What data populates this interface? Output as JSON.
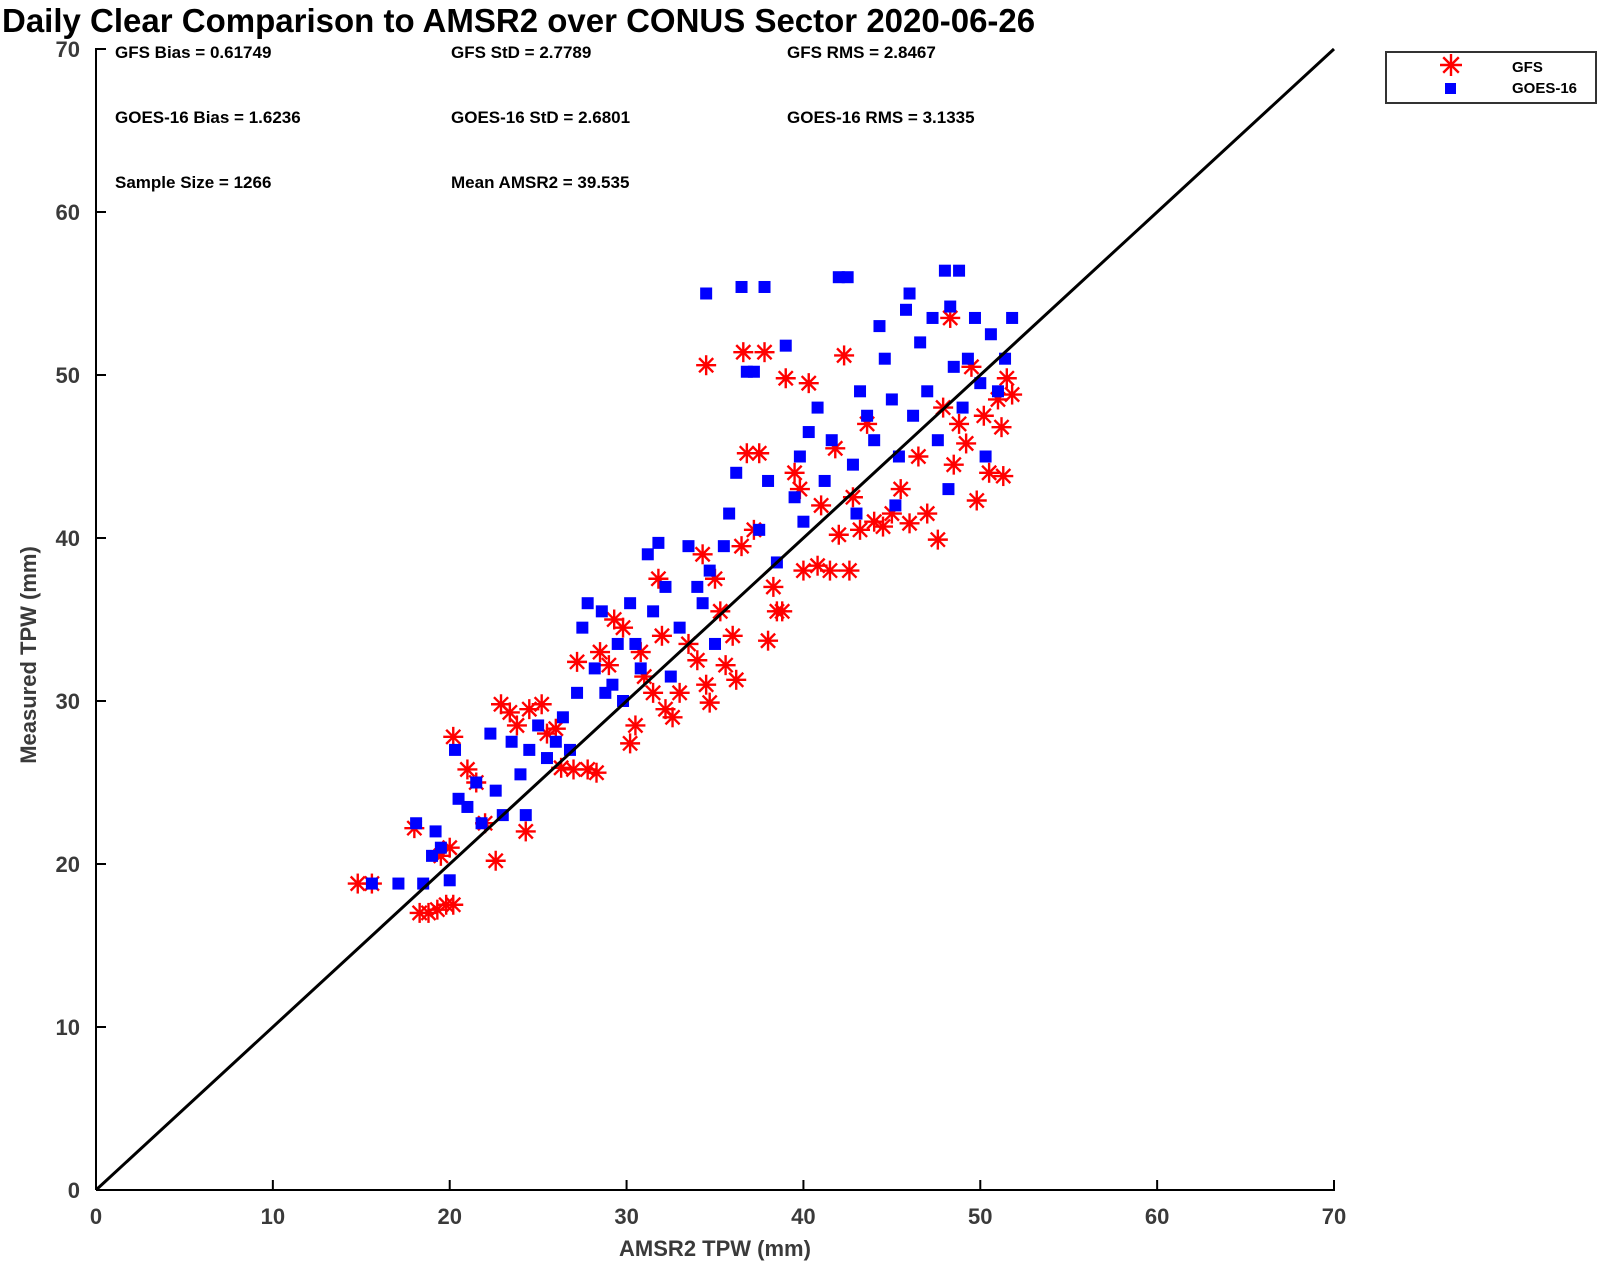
{
  "chart_data": {
    "type": "scatter",
    "title": "Daily Clear Comparison to AMSR2 over CONUS Sector 2020-06-26",
    "xlabel": "AMSR2 TPW (mm)",
    "ylabel": "Measured TPW (mm)",
    "xlim": [
      0,
      70
    ],
    "ylim": [
      0,
      70
    ],
    "xticks": [
      "0",
      "10",
      "20",
      "30",
      "40",
      "50",
      "60",
      "70"
    ],
    "yticks": [
      "0",
      "10",
      "20",
      "30",
      "40",
      "50",
      "60",
      "70"
    ],
    "reference_line": {
      "name": "1:1 line",
      "from": [
        0,
        0
      ],
      "to": [
        70,
        70
      ],
      "color": "#000000"
    },
    "legend": {
      "placement": "outside top-right",
      "entries": [
        "GFS",
        "GOES-16"
      ]
    },
    "stats": [
      {
        "id": "gfs-bias",
        "text": "GFS Bias = 0.61749"
      },
      {
        "id": "gfs-std",
        "text": "GFS StD = 2.7789"
      },
      {
        "id": "gfs-rms",
        "text": "GFS RMS = 2.8467"
      },
      {
        "id": "goes-bias",
        "text": "GOES-16 Bias = 1.6236"
      },
      {
        "id": "goes-std",
        "text": "GOES-16 StD = 2.6801"
      },
      {
        "id": "goes-rms",
        "text": "GOES-16 RMS = 3.1335"
      },
      {
        "id": "sample-size",
        "text": "Sample Size = 1266"
      },
      {
        "id": "mean-amsr2",
        "text": "Mean AMSR2 = 39.535"
      }
    ],
    "series": [
      {
        "name": "GFS",
        "marker": "asterisk",
        "color": "#ff0000",
        "points": [
          [
            14.8,
            18.8
          ],
          [
            15.6,
            18.8
          ],
          [
            18.0,
            22.2
          ],
          [
            18.3,
            17.0
          ],
          [
            18.8,
            17.0
          ],
          [
            19.3,
            17.2
          ],
          [
            19.8,
            17.5
          ],
          [
            20.2,
            17.5
          ],
          [
            19.5,
            20.5
          ],
          [
            20.0,
            21.0
          ],
          [
            20.2,
            27.8
          ],
          [
            21.0,
            25.8
          ],
          [
            21.5,
            25.0
          ],
          [
            22.0,
            22.5
          ],
          [
            22.6,
            20.2
          ],
          [
            22.9,
            29.8
          ],
          [
            23.4,
            29.3
          ],
          [
            23.8,
            28.5
          ],
          [
            24.3,
            22.0
          ],
          [
            24.5,
            29.5
          ],
          [
            25.2,
            29.8
          ],
          [
            25.5,
            28.0
          ],
          [
            26.0,
            28.3
          ],
          [
            26.3,
            25.9
          ],
          [
            27.0,
            25.8
          ],
          [
            27.2,
            32.4
          ],
          [
            27.8,
            25.8
          ],
          [
            28.3,
            25.6
          ],
          [
            28.5,
            33.0
          ],
          [
            29.0,
            32.2
          ],
          [
            29.3,
            35.0
          ],
          [
            29.8,
            34.5
          ],
          [
            30.2,
            27.4
          ],
          [
            30.5,
            28.5
          ],
          [
            30.8,
            33.0
          ],
          [
            31.0,
            31.5
          ],
          [
            31.5,
            30.5
          ],
          [
            31.8,
            37.5
          ],
          [
            32.0,
            34.0
          ],
          [
            32.2,
            29.5
          ],
          [
            32.6,
            29.0
          ],
          [
            33.0,
            30.5
          ],
          [
            33.5,
            33.5
          ],
          [
            34.0,
            32.5
          ],
          [
            34.5,
            31.0
          ],
          [
            34.5,
            50.6
          ],
          [
            34.3,
            39.0
          ],
          [
            34.7,
            29.9
          ],
          [
            35.0,
            37.5
          ],
          [
            35.3,
            35.5
          ],
          [
            35.6,
            32.2
          ],
          [
            36.0,
            34.0
          ],
          [
            36.2,
            31.3
          ],
          [
            36.5,
            39.5
          ],
          [
            36.8,
            45.2
          ],
          [
            36.6,
            51.4
          ],
          [
            37.2,
            40.5
          ],
          [
            37.5,
            45.2
          ],
          [
            37.8,
            51.4
          ],
          [
            38.0,
            33.7
          ],
          [
            38.3,
            37.0
          ],
          [
            38.5,
            35.5
          ],
          [
            38.8,
            35.5
          ],
          [
            39.0,
            49.8
          ],
          [
            39.5,
            44.0
          ],
          [
            39.8,
            43.0
          ],
          [
            40.0,
            38.0
          ],
          [
            40.3,
            49.5
          ],
          [
            40.8,
            38.3
          ],
          [
            41.0,
            42.0
          ],
          [
            41.5,
            38.0
          ],
          [
            41.8,
            45.5
          ],
          [
            42.0,
            40.2
          ],
          [
            42.3,
            51.2
          ],
          [
            42.6,
            38.0
          ],
          [
            42.8,
            42.5
          ],
          [
            43.2,
            40.5
          ],
          [
            43.6,
            47.0
          ],
          [
            44.0,
            41.0
          ],
          [
            44.5,
            40.7
          ],
          [
            45.0,
            41.5
          ],
          [
            45.5,
            43.0
          ],
          [
            46.0,
            40.9
          ],
          [
            46.5,
            45.0
          ],
          [
            47.0,
            41.5
          ],
          [
            47.6,
            39.9
          ],
          [
            47.9,
            48.0
          ],
          [
            48.3,
            53.5
          ],
          [
            48.5,
            44.5
          ],
          [
            48.8,
            47.0
          ],
          [
            49.2,
            45.8
          ],
          [
            49.5,
            50.5
          ],
          [
            49.8,
            42.3
          ],
          [
            50.2,
            47.5
          ],
          [
            50.5,
            44.0
          ],
          [
            51.0,
            48.5
          ],
          [
            51.3,
            43.8
          ],
          [
            51.5,
            49.8
          ],
          [
            51.8,
            48.8
          ],
          [
            51.2,
            46.8
          ]
        ]
      },
      {
        "name": "GOES-16",
        "marker": "square",
        "color": "#0000ff",
        "points": [
          [
            15.6,
            18.8
          ],
          [
            17.1,
            18.8
          ],
          [
            18.1,
            22.5
          ],
          [
            18.5,
            18.8
          ],
          [
            19.0,
            20.5
          ],
          [
            19.2,
            22.0
          ],
          [
            19.5,
            21.0
          ],
          [
            20.0,
            19.0
          ],
          [
            20.3,
            27.0
          ],
          [
            20.5,
            24.0
          ],
          [
            21.0,
            23.5
          ],
          [
            21.5,
            25.0
          ],
          [
            21.8,
            22.5
          ],
          [
            22.3,
            28.0
          ],
          [
            22.6,
            24.5
          ],
          [
            23.0,
            23.0
          ],
          [
            23.5,
            27.5
          ],
          [
            24.0,
            25.5
          ],
          [
            24.3,
            23.0
          ],
          [
            24.5,
            27.0
          ],
          [
            25.0,
            28.5
          ],
          [
            25.5,
            26.5
          ],
          [
            26.0,
            27.5
          ],
          [
            26.4,
            29.0
          ],
          [
            26.8,
            27.0
          ],
          [
            27.2,
            30.5
          ],
          [
            27.5,
            34.5
          ],
          [
            27.8,
            36.0
          ],
          [
            28.2,
            32.0
          ],
          [
            28.6,
            35.5
          ],
          [
            28.8,
            30.5
          ],
          [
            29.2,
            31.0
          ],
          [
            29.5,
            33.5
          ],
          [
            29.8,
            30.0
          ],
          [
            30.2,
            36.0
          ],
          [
            30.5,
            33.5
          ],
          [
            30.8,
            32.0
          ],
          [
            31.2,
            39.0
          ],
          [
            31.5,
            35.5
          ],
          [
            31.8,
            39.7
          ],
          [
            32.2,
            37.0
          ],
          [
            32.5,
            31.5
          ],
          [
            33.0,
            34.5
          ],
          [
            33.5,
            39.5
          ],
          [
            34.0,
            37.0
          ],
          [
            34.3,
            36.0
          ],
          [
            34.5,
            55.0
          ],
          [
            34.7,
            38.0
          ],
          [
            35.0,
            33.5
          ],
          [
            35.5,
            39.5
          ],
          [
            35.8,
            41.5
          ],
          [
            36.2,
            44.0
          ],
          [
            36.5,
            55.4
          ],
          [
            36.8,
            50.2
          ],
          [
            37.2,
            50.2
          ],
          [
            37.8,
            55.4
          ],
          [
            37.5,
            40.5
          ],
          [
            38.0,
            43.5
          ],
          [
            38.5,
            38.5
          ],
          [
            39.0,
            51.8
          ],
          [
            39.5,
            42.5
          ],
          [
            39.8,
            45.0
          ],
          [
            40.0,
            41.0
          ],
          [
            40.3,
            46.5
          ],
          [
            40.8,
            48.0
          ],
          [
            41.2,
            43.5
          ],
          [
            41.6,
            46.0
          ],
          [
            42.0,
            56.0
          ],
          [
            42.5,
            56.0
          ],
          [
            42.8,
            44.5
          ],
          [
            43.2,
            49.0
          ],
          [
            43.6,
            47.5
          ],
          [
            44.0,
            46.0
          ],
          [
            44.3,
            53.0
          ],
          [
            44.6,
            51.0
          ],
          [
            45.0,
            48.5
          ],
          [
            45.4,
            45.0
          ],
          [
            45.8,
            54.0
          ],
          [
            46.0,
            55.0
          ],
          [
            46.2,
            47.5
          ],
          [
            46.6,
            52.0
          ],
          [
            47.0,
            49.0
          ],
          [
            47.3,
            53.5
          ],
          [
            47.6,
            46.0
          ],
          [
            48.0,
            56.4
          ],
          [
            48.3,
            54.2
          ],
          [
            48.8,
            56.4
          ],
          [
            48.5,
            50.5
          ],
          [
            49.0,
            48.0
          ],
          [
            49.3,
            51.0
          ],
          [
            49.7,
            53.5
          ],
          [
            50.0,
            49.5
          ],
          [
            50.3,
            45.0
          ],
          [
            50.6,
            52.5
          ],
          [
            51.0,
            49.0
          ],
          [
            51.4,
            51.0
          ],
          [
            51.8,
            53.5
          ],
          [
            48.2,
            43.0
          ],
          [
            45.2,
            42.0
          ],
          [
            43.0,
            41.5
          ]
        ]
      }
    ]
  }
}
